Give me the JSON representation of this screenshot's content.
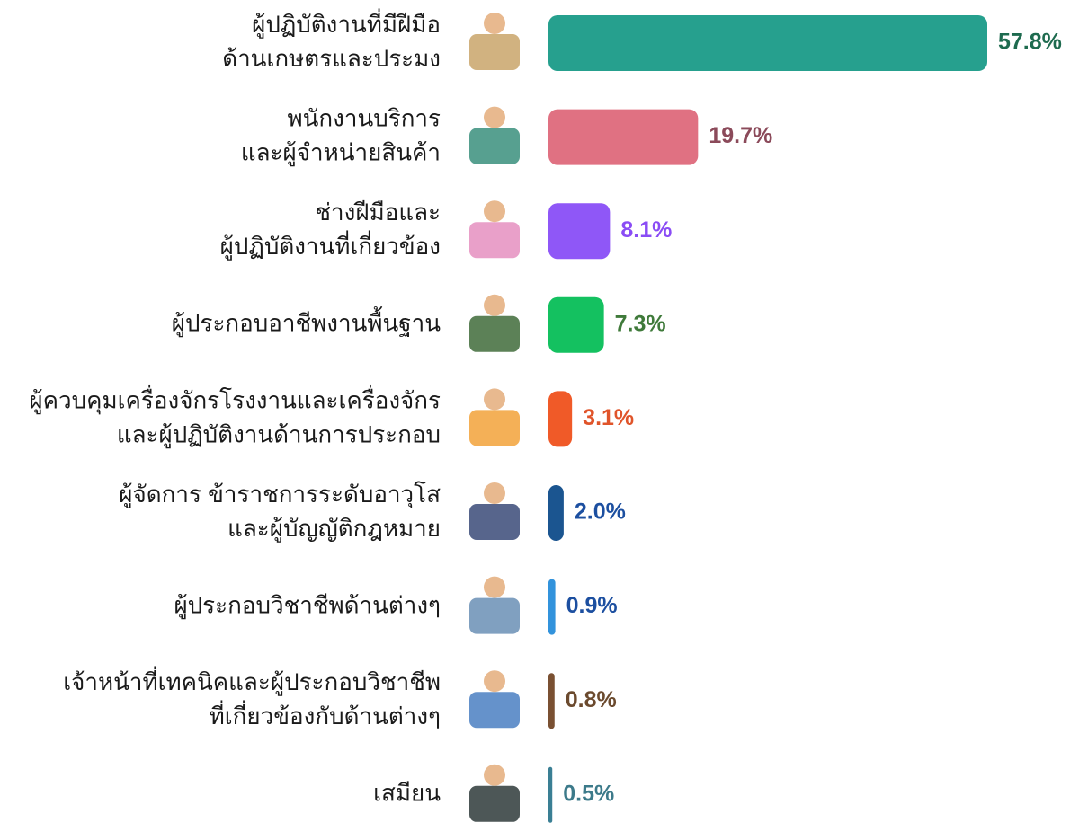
{
  "chart_data": {
    "type": "hbar",
    "categories": [
      [
        "ผู้ปฏิบัติงานที่มีฝีมือ",
        "ด้านเกษตรและประมง"
      ],
      [
        "พนักงานบริการ",
        "และผู้จำหน่ายสินค้า"
      ],
      [
        "ช่างฝีมือและ",
        "ผู้ปฏิบัติงานที่เกี่ยวข้อง"
      ],
      [
        "ผู้ประกอบอาชีพงานพื้นฐาน"
      ],
      [
        "ผู้ควบคุมเครื่องจักรโรงงานและเครื่องจักร",
        "และผู้ปฏิบัติงานด้านการประกอบ"
      ],
      [
        "ผู้จัดการ ข้าราชการระดับอาวุโส",
        "และผู้บัญญัติกฎหมาย"
      ],
      [
        "ผู้ประกอบวิชาชีพด้านต่างๆ"
      ],
      [
        "เจ้าหน้าที่เทคนิคและผู้ประกอบวิชาชีพ",
        "ที่เกี่ยวข้องกับด้านต่างๆ"
      ],
      [
        "เสมียน"
      ]
    ],
    "values": [
      57.8,
      19.7,
      8.1,
      7.3,
      3.1,
      2.0,
      0.9,
      0.8,
      0.5
    ],
    "value_labels": [
      "57.8%",
      "19.7%",
      "8.1%",
      "7.3%",
      "3.1%",
      "2.0%",
      "0.9%",
      "0.8%",
      "0.5%"
    ],
    "colors": [
      "#26a08e",
      "#e07182",
      "#8f57f7",
      "#14c160",
      "#f05a28",
      "#1b5590",
      "#3293dc",
      "#7a5032",
      "#3a7f94"
    ],
    "label_colors": [
      "#1e6b4f",
      "#8b4a5a",
      "#8a4cf5",
      "#3f7a3a",
      "#e0542a",
      "#1c4fa0",
      "#1c4fa0",
      "#6b4a2e",
      "#3c7a8a"
    ]
  }
}
